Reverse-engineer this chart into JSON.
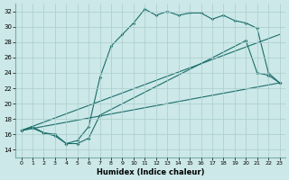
{
  "xlabel": "Humidex (Indice chaleur)",
  "xlim": [
    -0.5,
    23.5
  ],
  "ylim": [
    13,
    33
  ],
  "yticks": [
    14,
    16,
    18,
    20,
    22,
    24,
    26,
    28,
    30,
    32
  ],
  "xticks": [
    0,
    1,
    2,
    3,
    4,
    5,
    6,
    7,
    8,
    9,
    10,
    11,
    12,
    13,
    14,
    15,
    16,
    17,
    18,
    19,
    20,
    21,
    22,
    23
  ],
  "background_color": "#cce8e8",
  "grid_color": "#aacccc",
  "line_color": "#1a6e6a",
  "line1_x": [
    0,
    1,
    2,
    3,
    4,
    5,
    6,
    7,
    8,
    9,
    10,
    11,
    12,
    13,
    14,
    15,
    16,
    17,
    18,
    19,
    20,
    21,
    22,
    23
  ],
  "line1_y": [
    16.5,
    17.0,
    16.2,
    15.8,
    14.8,
    15.2,
    17.0,
    23.4,
    27.5,
    29.0,
    30.5,
    32.3,
    31.5,
    32.0,
    31.5,
    31.8,
    31.8,
    31.0,
    31.5,
    30.8,
    30.5,
    29.8,
    24.0,
    22.7
  ],
  "line2_x": [
    0,
    1,
    2,
    3,
    4,
    5,
    6,
    7,
    20,
    21,
    22,
    23
  ],
  "line2_y": [
    16.5,
    16.8,
    16.2,
    16.0,
    14.8,
    14.8,
    15.5,
    18.5,
    28.2,
    24.0,
    23.7,
    22.7
  ],
  "line3_x": [
    0,
    23
  ],
  "line3_y": [
    16.5,
    22.7
  ],
  "line4_x": [
    0,
    23
  ],
  "line4_y": [
    16.5,
    29.0
  ]
}
